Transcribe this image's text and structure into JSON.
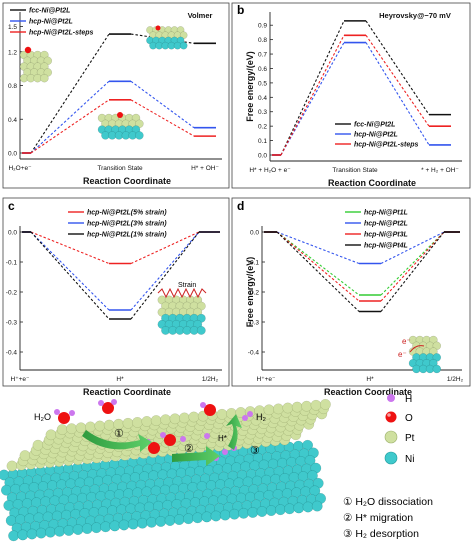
{
  "chart_data": [
    {
      "panel": "a",
      "type": "line",
      "subtitle": "Volmer",
      "xlabel": "Reaction Coordinate",
      "ylabel": "",
      "xticks": [
        "H₂O+e⁻",
        "Transition State",
        "H* + OH⁻"
      ],
      "yticks": [
        "0.0",
        "0.4",
        "0.8",
        "1.2",
        "1.5"
      ],
      "ylim": [
        0,
        1.6
      ],
      "legend_position": "top-left",
      "series": [
        {
          "name": "fcc-Ni@Pt2L",
          "color": "#111111",
          "values": [
            0.0,
            1.41,
            1.3
          ]
        },
        {
          "name": "hcp-Ni@Pt2L",
          "color": "#3355ee",
          "values": [
            0.0,
            0.85,
            0.3
          ]
        },
        {
          "name": "hcp-Ni@Pt2L-steps",
          "color": "#ee2222",
          "values": [
            0.0,
            0.63,
            0.2
          ]
        }
      ]
    },
    {
      "panel": "b",
      "type": "line",
      "subtitle": "Heyrovsky@−70 mV",
      "xlabel": "Reaction Coordinate",
      "ylabel": "Free energy/(eV)",
      "xticks": [
        "H* + H₂O + e⁻",
        "Transition State",
        "* + H₂ + OH⁻"
      ],
      "yticks": [
        "0.0",
        "0.1",
        "0.2",
        "0.3",
        "0.4",
        "0.5",
        "0.6",
        "0.7",
        "0.8",
        "0.9"
      ],
      "ylim": [
        0,
        0.95
      ],
      "legend_position": "bottom-right",
      "series": [
        {
          "name": "fcc-Ni@Pt2L",
          "color": "#111111",
          "values": [
            0.0,
            0.93,
            0.28
          ]
        },
        {
          "name": "hcp-Ni@Pt2L",
          "color": "#3355ee",
          "values": [
            0.0,
            0.78,
            0.07
          ]
        },
        {
          "name": "hcp-Ni@Pt2L-steps",
          "color": "#ee2222",
          "values": [
            0.0,
            0.83,
            0.2
          ]
        }
      ]
    },
    {
      "panel": "c",
      "type": "line",
      "xlabel": "Reaction Coordinate",
      "ylabel": "",
      "xticks": [
        "H⁺+e⁻",
        "H*",
        "1/2H₂"
      ],
      "yticks": [
        "0.0",
        "-0.1",
        "-0.2",
        "-0.3",
        "-0.4"
      ],
      "ylim": [
        -0.4,
        0.03
      ],
      "legend_position": "top",
      "annotation": "Strain",
      "series": [
        {
          "name": "hcp-Ni@Pt2L(5% strain)",
          "color": "#ee2222",
          "values": [
            0.0,
            -0.105,
            0.0
          ]
        },
        {
          "name": "hcp-Ni@Pt2L(3% strain)",
          "color": "#3355ee",
          "values": [
            0.0,
            -0.26,
            0.0
          ]
        },
        {
          "name": "hcp-Ni@Pt2L(1% strain)",
          "color": "#111111",
          "values": [
            0.0,
            -0.29,
            0.0
          ]
        }
      ]
    },
    {
      "panel": "d",
      "type": "line",
      "xlabel": "Reaction Coordinate",
      "ylabel": "Free energy/(eV)",
      "xticks": [
        "H⁺+e⁻",
        "H*",
        "1/2H₂"
      ],
      "yticks": [
        "0.0",
        "-0.1",
        "-0.2",
        "-0.3",
        "-0.4"
      ],
      "ylim": [
        -0.4,
        0.03
      ],
      "legend_position": "top",
      "series": [
        {
          "name": "hcp-Ni@Pt1L",
          "color": "#33cc33",
          "values": [
            0.0,
            -0.21,
            0.0
          ]
        },
        {
          "name": "hcp-Ni@Pt2L",
          "color": "#3355ee",
          "values": [
            0.0,
            -0.105,
            0.0
          ]
        },
        {
          "name": "hcp-Ni@Pt3L",
          "color": "#ee2222",
          "values": [
            0.0,
            -0.23,
            0.0
          ]
        },
        {
          "name": "hcp-Ni@Pt4L",
          "color": "#111111",
          "values": [
            0.0,
            -0.265,
            0.0
          ]
        }
      ]
    }
  ],
  "panels": {
    "a": {
      "letter": "a"
    },
    "b": {
      "letter": "b"
    },
    "c": {
      "letter": "c"
    },
    "d": {
      "letter": "d"
    }
  },
  "bottom": {
    "molecule_h2o": "H₂O",
    "molecule_h2": "H₂",
    "hstar": "H*",
    "step_numbers": [
      "①",
      "②",
      "③"
    ],
    "legend_atoms": [
      {
        "label": "H",
        "color": "#cc77ee"
      },
      {
        "label": "O",
        "color": "#ee1111"
      },
      {
        "label": "Pt",
        "color": "#cfe0a0"
      },
      {
        "label": "Ni",
        "color": "#3fc9cc"
      }
    ],
    "steps": [
      "① H₂O dissociation",
      "② H* migration",
      "③ H₂ desorption"
    ]
  }
}
